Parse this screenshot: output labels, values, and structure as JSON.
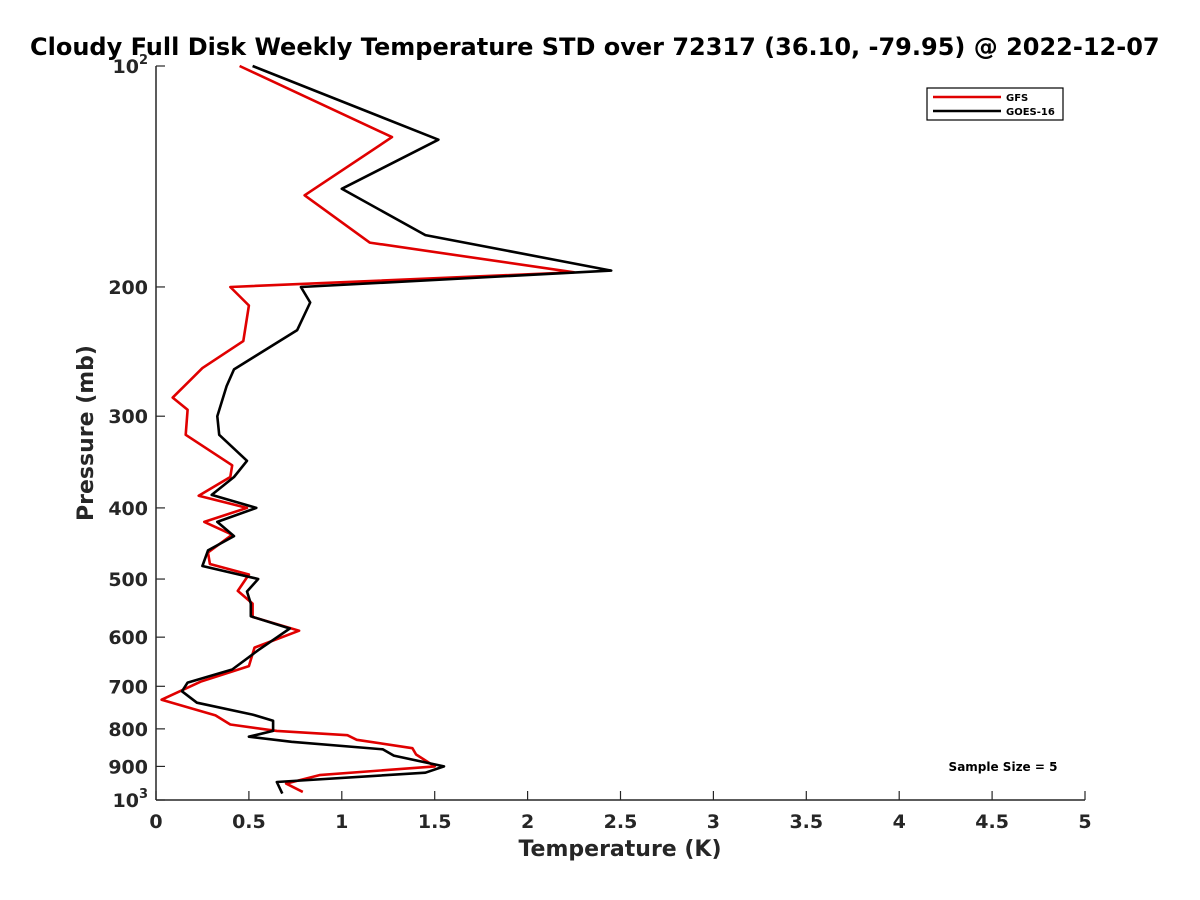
{
  "chart_data": {
    "type": "line",
    "title": "Cloudy Full Disk Weekly Temperature STD over 72317 (36.10, -79.95) @ 2022-12-07",
    "xlabel": "Temperature (K)",
    "ylabel": "Pressure (mb)",
    "xlim": [
      0,
      5
    ],
    "ylim": [
      1000,
      100
    ],
    "y_scale": "log",
    "y_reversed": true,
    "x_ticks": [
      0,
      0.5,
      1,
      1.5,
      2,
      2.5,
      3,
      3.5,
      4,
      4.5,
      5
    ],
    "x_tick_labels": [
      "0",
      "0.5",
      "1",
      "1.5",
      "2",
      "2.5",
      "3",
      "3.5",
      "4",
      "4.5",
      "5"
    ],
    "y_ticks": [
      100,
      200,
      300,
      400,
      500,
      600,
      700,
      800,
      900,
      1000
    ],
    "y_tick_labels": [
      {
        "base": "10",
        "exp": "2"
      },
      {
        "base": "200",
        "exp": ""
      },
      {
        "base": "300",
        "exp": ""
      },
      {
        "base": "400",
        "exp": ""
      },
      {
        "base": "500",
        "exp": ""
      },
      {
        "base": "600",
        "exp": ""
      },
      {
        "base": "700",
        "exp": ""
      },
      {
        "base": "800",
        "exp": ""
      },
      {
        "base": "900",
        "exp": ""
      },
      {
        "base": "10",
        "exp": "3"
      }
    ],
    "grid": false,
    "legend_position": "top-right",
    "series": [
      {
        "name": "GFS",
        "color": "#e00000",
        "points": [
          [
            0.45,
            100
          ],
          [
            1.27,
            125
          ],
          [
            0.8,
            150
          ],
          [
            1.15,
            174
          ],
          [
            2.25,
            191
          ],
          [
            0.4,
            200
          ],
          [
            0.5,
            212
          ],
          [
            0.47,
            237
          ],
          [
            0.25,
            258
          ],
          [
            0.09,
            283
          ],
          [
            0.17,
            294
          ],
          [
            0.16,
            318
          ],
          [
            0.41,
            350
          ],
          [
            0.4,
            363
          ],
          [
            0.23,
            385
          ],
          [
            0.49,
            400
          ],
          [
            0.26,
            418
          ],
          [
            0.41,
            435
          ],
          [
            0.28,
            460
          ],
          [
            0.29,
            477
          ],
          [
            0.5,
            493
          ],
          [
            0.44,
            519
          ],
          [
            0.52,
            540
          ],
          [
            0.52,
            563
          ],
          [
            0.77,
            588
          ],
          [
            0.53,
            620
          ],
          [
            0.5,
            657
          ],
          [
            0.24,
            690
          ],
          [
            0.03,
            730
          ],
          [
            0.32,
            767
          ],
          [
            0.4,
            789
          ],
          [
            0.65,
            805
          ],
          [
            1.03,
            816
          ],
          [
            1.08,
            828
          ],
          [
            1.38,
            850
          ],
          [
            1.4,
            867
          ],
          [
            1.5,
            900
          ],
          [
            0.88,
            925
          ],
          [
            0.7,
            950
          ],
          [
            0.79,
            975
          ]
        ]
      },
      {
        "name": "GOES-16",
        "color": "#000000",
        "points": [
          [
            0.52,
            100
          ],
          [
            1.52,
            126
          ],
          [
            1.0,
            147
          ],
          [
            1.45,
            170
          ],
          [
            2.45,
            190
          ],
          [
            0.78,
            200
          ],
          [
            0.83,
            210
          ],
          [
            0.76,
            229
          ],
          [
            0.42,
            259
          ],
          [
            0.38,
            273
          ],
          [
            0.33,
            300
          ],
          [
            0.34,
            318
          ],
          [
            0.49,
            345
          ],
          [
            0.42,
            363
          ],
          [
            0.3,
            384
          ],
          [
            0.54,
            400
          ],
          [
            0.33,
            418
          ],
          [
            0.42,
            437
          ],
          [
            0.28,
            457
          ],
          [
            0.25,
            480
          ],
          [
            0.55,
            500
          ],
          [
            0.49,
            520
          ],
          [
            0.51,
            540
          ],
          [
            0.51,
            562
          ],
          [
            0.72,
            584
          ],
          [
            0.55,
            625
          ],
          [
            0.41,
            664
          ],
          [
            0.17,
            692
          ],
          [
            0.14,
            711
          ],
          [
            0.22,
            737
          ],
          [
            0.52,
            765
          ],
          [
            0.63,
            780
          ],
          [
            0.63,
            805
          ],
          [
            0.5,
            820
          ],
          [
            0.73,
            833
          ],
          [
            1.22,
            853
          ],
          [
            1.28,
            870
          ],
          [
            1.55,
            900
          ],
          [
            1.45,
            918
          ],
          [
            0.65,
            945
          ],
          [
            0.68,
            980
          ]
        ]
      }
    ],
    "annotations": [
      "Sample Size = 5"
    ]
  }
}
